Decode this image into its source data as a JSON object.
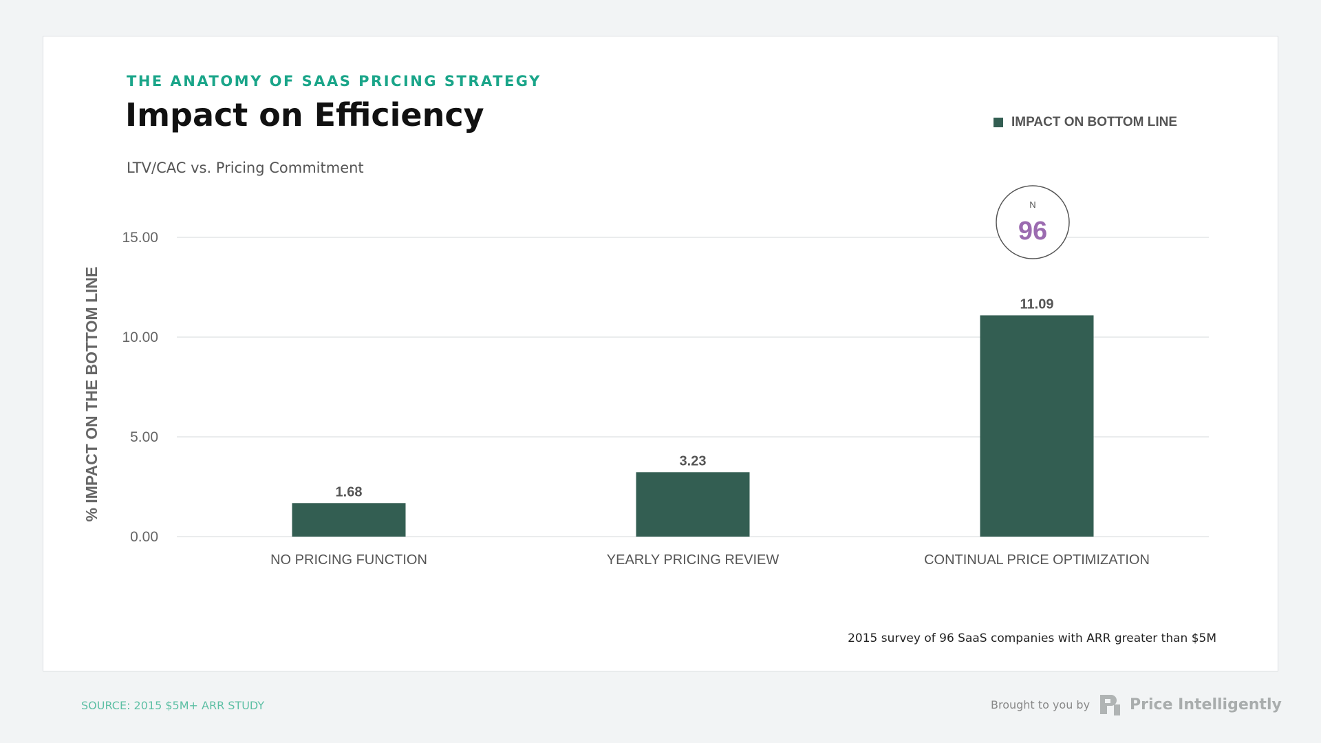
{
  "header": {
    "eyebrow": "THE ANATOMY OF SAAS PRICING STRATEGY",
    "title": "Impact on Efficiency",
    "subtitle": "LTV/CAC vs. Pricing Commitment"
  },
  "legend": {
    "label": "IMPACT ON BOTTOM LINE",
    "color": "#335e52"
  },
  "badge": {
    "label": "N",
    "value": "96",
    "value_color": "#9b6bb0"
  },
  "footnote": "2015 survey of 96 SaaS companies with ARR greater than $5M",
  "footer": {
    "source": "SOURCE: 2015 $5M+ ARR STUDY",
    "brought": "Brought to you by",
    "brand": "Price Intelligently"
  },
  "chart_data": {
    "type": "bar",
    "categories": [
      "NO PRICING FUNCTION",
      "YEARLY PRICING REVIEW",
      "CONTINUAL PRICE OPTIMIZATION"
    ],
    "series": [
      {
        "name": "IMPACT ON BOTTOM LINE",
        "values": [
          1.68,
          3.23,
          11.09
        ],
        "labels": [
          "1.68",
          "3.23",
          "11.09"
        ],
        "color": "#335e52"
      }
    ],
    "ylabel": "% IMPACT ON THE BOTTOM LINE",
    "yticks": [
      "0.00",
      "5.00",
      "10.00",
      "15.00"
    ],
    "ylim": [
      0,
      15
    ],
    "grid": true,
    "legend": "top-right"
  }
}
